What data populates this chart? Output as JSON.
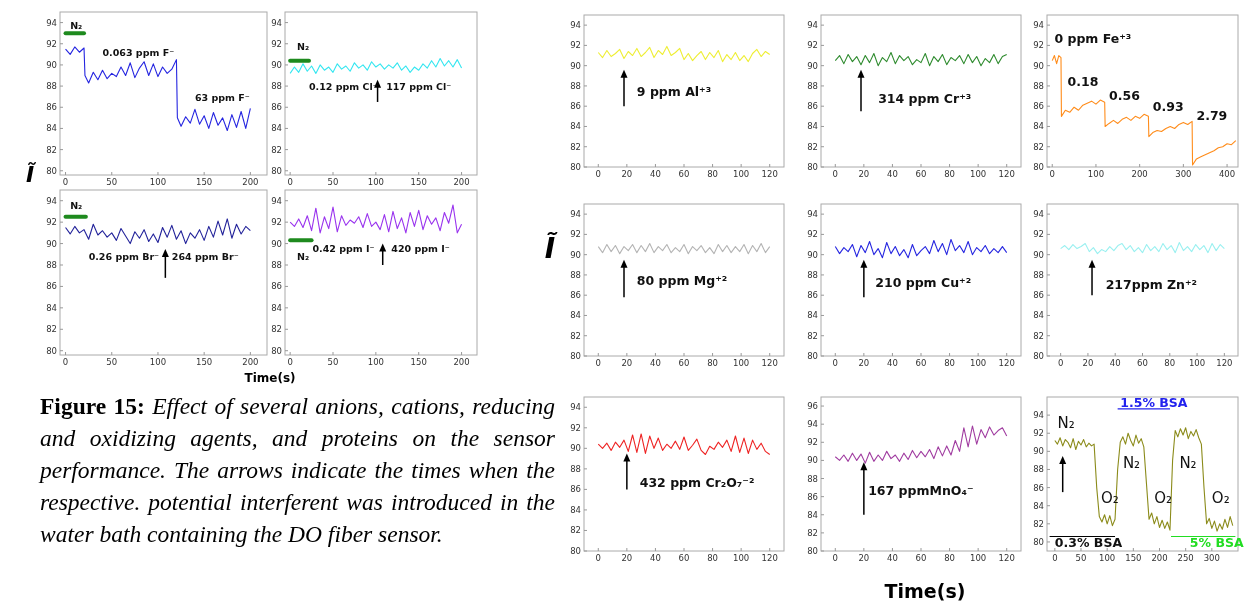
{
  "chart_data": [
    {
      "type": "line",
      "x": [
        0,
        5,
        10,
        15,
        20,
        21,
        25,
        30,
        35,
        40,
        45,
        50,
        55,
        60,
        65,
        70,
        75,
        80,
        85,
        90,
        95,
        100,
        105,
        110,
        115,
        120,
        121,
        125,
        130,
        135,
        140,
        145,
        150,
        155,
        160,
        165,
        170,
        175,
        180,
        185,
        190,
        195,
        200
      ],
      "series": [
        {
          "color": "#2424e0",
          "values": [
            91.5,
            91.0,
            91.7,
            91.2,
            91.6,
            89.0,
            88.3,
            89.3,
            88.6,
            89.5,
            88.7,
            89.2,
            88.9,
            89.8,
            89.0,
            90.2,
            88.8,
            89.7,
            90.3,
            89.0,
            90.1,
            88.9,
            89.8,
            89.2,
            89.6,
            90.5,
            85.0,
            84.2,
            85.1,
            84.5,
            85.8,
            84.4,
            85.2,
            84.0,
            85.5,
            84.3,
            85.0,
            83.8,
            85.3,
            84.1,
            85.6,
            84.0,
            85.9
          ]
        }
      ],
      "xlim": [
        -6,
        218
      ],
      "xticks": [
        0,
        50,
        100,
        150,
        200
      ],
      "ylim": [
        79.6,
        95
      ],
      "yticks": [
        80,
        82,
        84,
        86,
        88,
        90,
        92,
        94
      ],
      "ylabel": "Ĩ",
      "annotations": [
        "N₂",
        "0.063 ppm F⁻",
        "63 ppm F⁻"
      ]
    },
    {
      "type": "line",
      "x": [
        0,
        5,
        10,
        15,
        20,
        25,
        30,
        35,
        40,
        45,
        50,
        55,
        60,
        65,
        70,
        75,
        80,
        85,
        90,
        95,
        100,
        105,
        110,
        115,
        120,
        125,
        130,
        135,
        140,
        145,
        150,
        155,
        160,
        165,
        170,
        175,
        180,
        185,
        190,
        195,
        200
      ],
      "series": [
        {
          "color": "#33e6f0",
          "values": [
            89.2,
            89.8,
            89.3,
            90.1,
            89.4,
            89.9,
            89.2,
            90.0,
            89.5,
            89.8,
            89.3,
            90.1,
            89.6,
            89.9,
            89.4,
            90.2,
            89.7,
            90.0,
            89.5,
            90.3,
            89.8,
            90.1,
            89.6,
            90.0,
            89.7,
            90.2,
            89.5,
            89.9,
            89.3,
            89.8,
            89.5,
            90.1,
            89.7,
            90.4,
            89.8,
            90.6,
            89.9,
            90.4,
            89.8,
            90.5,
            89.7
          ]
        }
      ],
      "xlim": [
        -6,
        218
      ],
      "xticks": [
        0,
        50,
        100,
        150,
        200
      ],
      "ylim": [
        79.6,
        95
      ],
      "yticks": [
        80,
        82,
        84,
        86,
        88,
        90,
        92,
        94
      ],
      "annotations": [
        "N₂",
        "0.12 ppm Cl⁻",
        "117 ppm Cl⁻"
      ]
    },
    {
      "type": "line",
      "x": [
        0,
        5,
        10,
        15,
        20,
        25,
        30,
        35,
        40,
        45,
        50,
        55,
        60,
        65,
        70,
        75,
        80,
        85,
        90,
        95,
        100,
        105,
        110,
        115,
        120,
        125,
        130,
        135,
        140,
        145,
        150,
        155,
        160,
        165,
        170,
        175,
        180,
        185,
        190,
        195,
        200
      ],
      "series": [
        {
          "color": "#22229a",
          "values": [
            91.5,
            90.9,
            91.6,
            91.0,
            91.3,
            90.4,
            91.8,
            90.8,
            91.2,
            90.6,
            91.0,
            90.3,
            91.4,
            90.7,
            90.0,
            91.1,
            90.5,
            91.3,
            90.2,
            90.9,
            90.1,
            91.5,
            90.6,
            91.7,
            90.4,
            91.2,
            90.0,
            91.0,
            90.5,
            91.3,
            90.3,
            91.6,
            90.6,
            92.1,
            90.8,
            92.3,
            90.5,
            91.8,
            90.9,
            91.6,
            91.2
          ]
        }
      ],
      "xlim": [
        -6,
        218
      ],
      "xticks": [
        0,
        50,
        100,
        150,
        200
      ],
      "ylim": [
        79.6,
        95
      ],
      "yticks": [
        80,
        82,
        84,
        86,
        88,
        90,
        92,
        94
      ],
      "annotations": [
        "N₂",
        "0.26 ppm Br⁻",
        "264 ppm Br⁻"
      ]
    },
    {
      "type": "line",
      "x": [
        0,
        5,
        10,
        15,
        20,
        25,
        30,
        35,
        40,
        45,
        50,
        55,
        60,
        65,
        70,
        75,
        80,
        85,
        90,
        95,
        100,
        105,
        110,
        115,
        120,
        125,
        130,
        135,
        140,
        145,
        150,
        155,
        160,
        165,
        170,
        175,
        180,
        185,
        190,
        195,
        200
      ],
      "series": [
        {
          "color": "#9933ee",
          "values": [
            92.0,
            91.6,
            92.3,
            91.5,
            92.6,
            91.2,
            93.3,
            91.0,
            92.5,
            91.4,
            93.4,
            91.1,
            92.6,
            91.7,
            92.2,
            91.9,
            92.5,
            91.5,
            92.8,
            91.6,
            92.0,
            91.3,
            92.7,
            91.1,
            93.0,
            91.4,
            92.4,
            91.0,
            92.9,
            91.6,
            93.1,
            91.3,
            92.6,
            91.8,
            92.4,
            91.2,
            92.9,
            91.9,
            93.6,
            91.0,
            91.8
          ]
        }
      ],
      "xlim": [
        -6,
        218
      ],
      "xticks": [
        0,
        50,
        100,
        150,
        200
      ],
      "ylim": [
        79.6,
        95
      ],
      "yticks": [
        80,
        82,
        84,
        86,
        88,
        90,
        92,
        94
      ],
      "xlabel": "Time(s)",
      "annotations": [
        "N₂",
        "0.42 ppm I⁻",
        "420 ppm I⁻"
      ]
    },
    {
      "type": "line",
      "x": [
        0,
        3,
        6,
        9,
        12,
        15,
        18,
        21,
        24,
        27,
        30,
        33,
        36,
        39,
        42,
        45,
        48,
        51,
        54,
        57,
        60,
        63,
        66,
        69,
        72,
        75,
        78,
        81,
        84,
        87,
        90,
        93,
        96,
        99,
        102,
        105,
        108,
        111,
        114,
        117,
        120
      ],
      "series": [
        {
          "color": "#eeee33",
          "values": [
            91.3,
            90.8,
            91.5,
            90.9,
            91.2,
            91.6,
            90.7,
            91.4,
            91.0,
            91.7,
            90.9,
            91.3,
            91.8,
            90.8,
            91.5,
            91.1,
            91.9,
            91.0,
            91.3,
            91.7,
            90.6,
            91.2,
            90.5,
            91.0,
            91.4,
            90.6,
            91.3,
            90.8,
            91.5,
            90.4,
            91.1,
            90.6,
            91.3,
            90.5,
            91.0,
            90.4,
            91.2,
            91.6,
            90.9,
            91.4,
            91.1
          ]
        }
      ],
      "xlim": [
        -10,
        130
      ],
      "xticks": [
        0,
        20,
        40,
        60,
        80,
        100,
        120
      ],
      "ylim": [
        80,
        95
      ],
      "yticks": [
        80,
        82,
        84,
        86,
        88,
        90,
        92,
        94
      ],
      "annotations": [
        "9 ppm Al⁺³"
      ]
    },
    {
      "type": "line",
      "x": [
        0,
        3,
        6,
        9,
        12,
        15,
        18,
        21,
        24,
        27,
        30,
        33,
        36,
        39,
        42,
        45,
        48,
        51,
        54,
        57,
        60,
        63,
        66,
        69,
        72,
        75,
        78,
        81,
        84,
        87,
        90,
        93,
        96,
        99,
        102,
        105,
        108,
        111,
        114,
        117,
        120
      ],
      "series": [
        {
          "color": "#2e8b2e",
          "values": [
            90.5,
            91.0,
            90.2,
            91.1,
            90.4,
            90.9,
            90.1,
            91.0,
            90.3,
            91.2,
            90.0,
            90.8,
            90.4,
            91.3,
            90.2,
            91.0,
            90.5,
            90.9,
            90.1,
            90.6,
            90.3,
            91.2,
            90.0,
            90.9,
            90.4,
            91.1,
            90.1,
            90.8,
            90.5,
            91.0,
            90.2,
            91.1,
            90.3,
            90.9,
            90.0,
            90.7,
            90.3,
            91.1,
            90.2,
            90.9,
            91.1
          ]
        }
      ],
      "xlim": [
        -10,
        130
      ],
      "xticks": [
        0,
        20,
        40,
        60,
        80,
        100,
        120
      ],
      "ylim": [
        80,
        95
      ],
      "yticks": [
        80,
        82,
        84,
        86,
        88,
        90,
        92,
        94
      ],
      "annotations": [
        "314 ppm Cr⁺³"
      ]
    },
    {
      "type": "line",
      "x": [
        0,
        5,
        10,
        15,
        20,
        21,
        30,
        40,
        50,
        60,
        70,
        80,
        90,
        100,
        110,
        120,
        121,
        130,
        140,
        150,
        160,
        170,
        180,
        190,
        200,
        210,
        220,
        221,
        230,
        240,
        250,
        260,
        270,
        280,
        290,
        300,
        310,
        320,
        321,
        330,
        340,
        350,
        360,
        370,
        380,
        390,
        400,
        410,
        420
      ],
      "series": [
        {
          "color": "#ff8c1a",
          "values": [
            90.5,
            91.0,
            90.2,
            91.0,
            90.8,
            85.0,
            85.6,
            85.4,
            85.9,
            85.6,
            86.1,
            86.3,
            86.5,
            86.2,
            86.6,
            86.4,
            84.0,
            84.3,
            84.6,
            84.3,
            84.7,
            84.9,
            84.6,
            85.0,
            84.8,
            85.2,
            85.0,
            83.0,
            83.4,
            83.6,
            83.5,
            83.8,
            84.0,
            83.8,
            84.2,
            84.4,
            84.2,
            84.5,
            80.2,
            80.8,
            81.0,
            81.2,
            81.4,
            81.6,
            81.9,
            82.0,
            82.3,
            82.2,
            82.6
          ]
        }
      ],
      "xlim": [
        -12,
        425
      ],
      "xticks": [
        0,
        100,
        200,
        300,
        400
      ],
      "ylim": [
        80,
        95
      ],
      "yticks": [
        80,
        82,
        84,
        86,
        88,
        90,
        92,
        94
      ],
      "annotations": [
        "0 ppm Fe⁺³",
        "0.18",
        "0.56",
        "0.93",
        "2.79"
      ]
    },
    {
      "type": "line",
      "x": [
        0,
        3,
        6,
        9,
        12,
        15,
        18,
        21,
        24,
        27,
        30,
        33,
        36,
        39,
        42,
        45,
        48,
        51,
        54,
        57,
        60,
        63,
        66,
        69,
        72,
        75,
        78,
        81,
        84,
        87,
        90,
        93,
        96,
        99,
        102,
        105,
        108,
        111,
        114,
        117,
        120
      ],
      "series": [
        {
          "color": "#b4b4b4",
          "values": [
            90.8,
            90.2,
            91.0,
            90.3,
            90.9,
            90.1,
            90.8,
            90.4,
            91.0,
            90.2,
            90.9,
            90.3,
            91.1,
            90.2,
            90.8,
            90.4,
            91.0,
            90.2,
            90.7,
            90.3,
            91.0,
            90.1,
            90.8,
            90.4,
            90.9,
            90.2,
            90.7,
            90.1,
            91.0,
            90.3,
            90.9,
            90.2,
            90.8,
            90.3,
            91.0,
            90.1,
            90.9,
            90.3,
            91.1,
            90.2,
            90.8
          ]
        }
      ],
      "xlim": [
        -10,
        130
      ],
      "xticks": [
        0,
        20,
        40,
        60,
        80,
        100,
        120
      ],
      "ylim": [
        80,
        95
      ],
      "yticks": [
        80,
        82,
        84,
        86,
        88,
        90,
        92,
        94
      ],
      "ylabel": "Ĩ",
      "annotations": [
        "80 ppm Mg⁺²"
      ]
    },
    {
      "type": "line",
      "x": [
        0,
        3,
        6,
        9,
        12,
        15,
        18,
        21,
        24,
        27,
        30,
        33,
        36,
        39,
        42,
        45,
        48,
        51,
        54,
        57,
        60,
        63,
        66,
        69,
        72,
        75,
        78,
        81,
        84,
        87,
        90,
        93,
        96,
        99,
        102,
        105,
        108,
        111,
        114,
        117,
        120
      ],
      "series": [
        {
          "color": "#2626e0",
          "values": [
            90.8,
            90.1,
            90.7,
            90.3,
            91.0,
            89.8,
            90.9,
            90.2,
            91.3,
            90.0,
            90.6,
            89.7,
            91.2,
            90.1,
            90.8,
            89.9,
            90.5,
            89.7,
            91.0,
            89.9,
            90.4,
            90.8,
            90.1,
            91.4,
            90.3,
            91.1,
            90.0,
            91.5,
            90.4,
            90.9,
            90.2,
            91.3,
            90.0,
            90.7,
            90.3,
            90.9,
            90.1,
            90.6,
            90.2,
            90.8,
            90.2
          ]
        }
      ],
      "xlim": [
        -10,
        130
      ],
      "xticks": [
        0,
        20,
        40,
        60,
        80,
        100,
        120
      ],
      "ylim": [
        80,
        95
      ],
      "yticks": [
        80,
        82,
        84,
        86,
        88,
        90,
        92,
        94
      ],
      "annotations": [
        "210 ppm Cu⁺²"
      ]
    },
    {
      "type": "line",
      "x": [
        0,
        3,
        6,
        9,
        12,
        15,
        18,
        21,
        24,
        27,
        30,
        33,
        36,
        39,
        42,
        45,
        48,
        51,
        54,
        57,
        60,
        63,
        66,
        69,
        72,
        75,
        78,
        81,
        84,
        87,
        90,
        93,
        96,
        99,
        102,
        105,
        108,
        111,
        114,
        117,
        120
      ],
      "series": [
        {
          "color": "#99f0f0",
          "values": [
            90.6,
            90.9,
            90.5,
            91.0,
            90.6,
            90.8,
            91.1,
            90.3,
            90.7,
            90.1,
            90.5,
            90.3,
            90.8,
            90.4,
            90.9,
            91.1,
            90.5,
            90.9,
            90.3,
            90.7,
            90.2,
            91.0,
            90.4,
            90.8,
            90.3,
            91.1,
            90.5,
            90.9,
            90.2,
            91.2,
            90.4,
            90.8,
            90.3,
            91.0,
            90.5,
            90.9,
            90.2,
            91.1,
            90.4,
            91.0,
            90.6
          ]
        }
      ],
      "xlim": [
        -10,
        130
      ],
      "xticks": [
        0,
        20,
        40,
        60,
        80,
        100,
        120
      ],
      "ylim": [
        80,
        95
      ],
      "yticks": [
        80,
        82,
        84,
        86,
        88,
        90,
        92,
        94
      ],
      "annotations": [
        "217ppm Zn⁺²"
      ]
    },
    {
      "type": "line",
      "x": [
        0,
        3,
        6,
        9,
        12,
        15,
        18,
        21,
        24,
        27,
        30,
        33,
        36,
        39,
        42,
        45,
        48,
        51,
        54,
        57,
        60,
        63,
        66,
        69,
        72,
        75,
        78,
        81,
        84,
        87,
        90,
        93,
        96,
        99,
        102,
        105,
        108,
        111,
        114,
        117,
        120
      ],
      "series": [
        {
          "color": "#ee2222",
          "values": [
            90.4,
            90.0,
            90.5,
            89.8,
            90.6,
            90.1,
            90.8,
            89.7,
            91.3,
            89.6,
            91.4,
            89.5,
            91.2,
            90.0,
            91.0,
            89.8,
            90.4,
            90.0,
            90.7,
            89.9,
            91.1,
            89.8,
            90.3,
            90.9,
            89.8,
            89.4,
            90.2,
            89.9,
            90.6,
            90.1,
            90.8,
            89.7,
            91.2,
            89.6,
            91.0,
            89.5,
            90.8,
            89.9,
            90.5,
            89.7,
            89.4
          ]
        }
      ],
      "xlim": [
        -10,
        130
      ],
      "xticks": [
        0,
        20,
        40,
        60,
        80,
        100,
        120
      ],
      "ylim": [
        80,
        95
      ],
      "yticks": [
        80,
        82,
        84,
        86,
        88,
        90,
        92,
        94
      ],
      "annotations": [
        "432 ppm Cr₂O₇⁻²"
      ]
    },
    {
      "type": "line",
      "x": [
        0,
        3,
        6,
        9,
        12,
        15,
        18,
        21,
        24,
        27,
        30,
        33,
        36,
        39,
        42,
        45,
        48,
        51,
        54,
        57,
        60,
        63,
        66,
        69,
        72,
        75,
        78,
        81,
        84,
        87,
        90,
        93,
        96,
        99,
        102,
        105,
        108,
        111,
        114,
        117,
        120
      ],
      "series": [
        {
          "color": "#a03ca0",
          "values": [
            90.4,
            90.0,
            90.6,
            89.9,
            90.8,
            90.0,
            90.7,
            89.7,
            90.9,
            89.9,
            90.6,
            90.0,
            91.0,
            90.2,
            90.6,
            89.9,
            90.8,
            90.1,
            91.1,
            90.3,
            91.0,
            90.4,
            91.2,
            90.2,
            91.5,
            90.5,
            91.6,
            90.6,
            92.2,
            91.0,
            93.6,
            91.5,
            93.8,
            91.8,
            93.4,
            92.5,
            93.7,
            92.8,
            93.3,
            93.6,
            92.7
          ]
        }
      ],
      "xlim": [
        -10,
        130
      ],
      "xticks": [
        0,
        20,
        40,
        60,
        80,
        100,
        120
      ],
      "ylim": [
        80,
        97
      ],
      "yticks": [
        80,
        82,
        84,
        86,
        88,
        90,
        92,
        94,
        96
      ],
      "xlabel": "Time(s)",
      "annotations": [
        "167 ppmMnO₄⁻"
      ]
    },
    {
      "type": "line",
      "x": [
        0,
        5,
        10,
        15,
        20,
        25,
        30,
        35,
        40,
        45,
        50,
        55,
        60,
        65,
        70,
        75,
        80,
        85,
        90,
        95,
        100,
        105,
        110,
        115,
        120,
        125,
        130,
        135,
        140,
        145,
        150,
        155,
        160,
        165,
        170,
        175,
        180,
        185,
        190,
        195,
        200,
        205,
        210,
        215,
        220,
        225,
        230,
        235,
        240,
        245,
        250,
        255,
        260,
        265,
        270,
        275,
        280,
        285,
        290,
        295,
        300,
        305,
        310,
        315,
        320,
        325,
        330,
        335,
        340
      ],
      "series": [
        {
          "color": "#8b8b1a",
          "values": [
            91.2,
            90.8,
            91.5,
            90.6,
            91.3,
            91.0,
            90.4,
            91.4,
            90.2,
            91.1,
            90.7,
            91.3,
            90.5,
            90.9,
            90.6,
            90.8,
            86.0,
            82.8,
            82.2,
            83.0,
            82.0,
            82.9,
            81.8,
            82.5,
            88.0,
            91.0,
            91.6,
            90.8,
            92.0,
            91.2,
            90.6,
            91.8,
            90.9,
            91.4,
            90.5,
            86.5,
            82.5,
            83.2,
            82.0,
            82.8,
            81.6,
            82.4,
            81.5,
            82.2,
            81.3,
            89.0,
            92.3,
            91.6,
            92.5,
            91.8,
            92.6,
            91.4,
            92.2,
            91.7,
            92.4,
            91.5,
            90.8,
            86.0,
            82.0,
            82.6,
            81.5,
            82.3,
            81.2,
            82.0,
            81.4,
            82.5,
            81.6,
            82.8,
            81.8
          ]
        }
      ],
      "xlim": [
        -15,
        350
      ],
      "xticks": [
        0,
        50,
        100,
        150,
        200,
        250,
        300
      ],
      "ylim": [
        79,
        96
      ],
      "yticks": [
        80,
        82,
        84,
        86,
        88,
        90,
        92,
        94
      ],
      "annotations": [
        "N₂",
        "1.5% BSA",
        "N₂",
        "O₂",
        "O₂",
        "N₂",
        "O₂",
        "0.3% BSA",
        "5% BSA"
      ]
    },
    {
      "type": "other",
      "annotations": [
        "Figure 15:",
        "Effect of several anions, cations, reducing and oxidizing agents, and proteins on the sensor performance.  The arrows indicate the times when the respective. potential interferent was introduced in the water bath containing the DO fiber sensor."
      ]
    }
  ]
}
